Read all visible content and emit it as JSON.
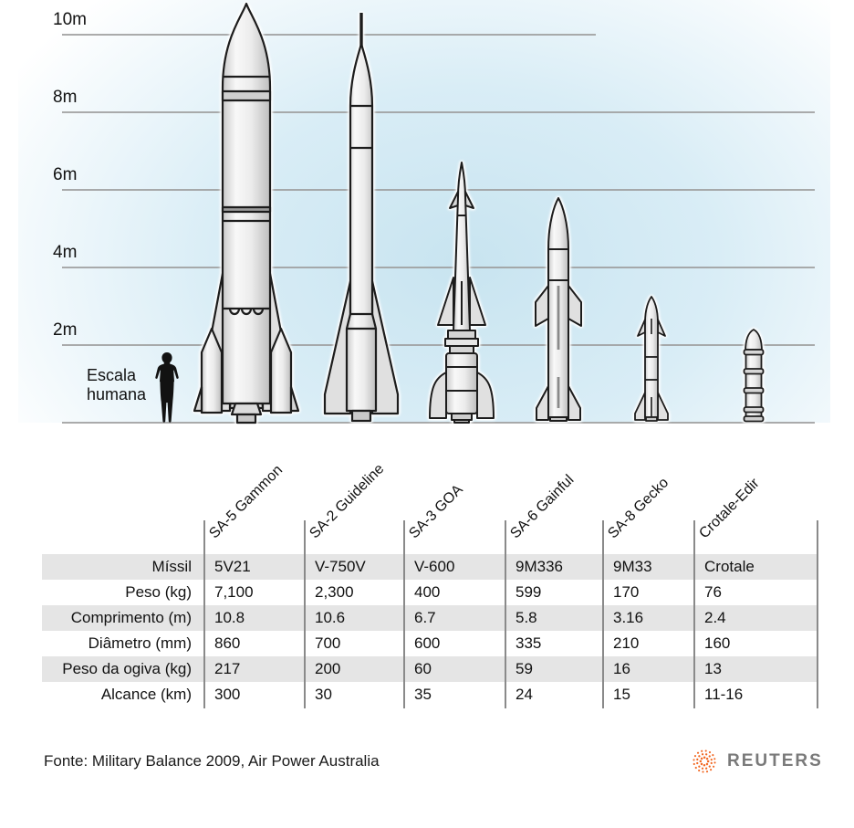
{
  "chart_data": {
    "type": "table",
    "scale": {
      "ticks": [
        "10m",
        "8m",
        "6m",
        "4m",
        "2m"
      ],
      "human_label": "Escala humana"
    },
    "columns": [
      "SA-5 Gammon",
      "SA-2 Guideline",
      "SA-3 GOA",
      "SA-6 Gainful",
      "SA-8 Gecko",
      "Crotale-Edir"
    ],
    "rows": [
      {
        "label": "Míssil",
        "values": [
          "5V21",
          "V-750V",
          "V-600",
          "9M336",
          "9M33",
          "Crotale"
        ]
      },
      {
        "label": "Peso (kg)",
        "values": [
          "7,100",
          "2,300",
          "400",
          "599",
          "170",
          "76"
        ]
      },
      {
        "label": "Comprimento (m)",
        "values": [
          "10.8",
          "10.6",
          "6.7",
          "5.8",
          "3.16",
          "2.4"
        ]
      },
      {
        "label": "Diâmetro (mm)",
        "values": [
          "860",
          "700",
          "600",
          "335",
          "210",
          "160"
        ]
      },
      {
        "label": "Peso da ogiva (kg)",
        "values": [
          "217",
          "200",
          "60",
          "59",
          "16",
          "13"
        ]
      },
      {
        "label": "Alcance (km)",
        "values": [
          "300",
          "30",
          "35",
          "24",
          "15",
          "11-16"
        ]
      }
    ],
    "missile_lengths_m": [
      10.8,
      10.6,
      6.7,
      5.8,
      3.16,
      2.4
    ],
    "colors": {
      "background_blue": "#cde7f2",
      "row_shade": "#e5e5e5",
      "grid_line": "#9c9c9c",
      "reuters_orange": "#f26822",
      "reuters_gray": "#7a7a7a"
    }
  },
  "footer": {
    "source": "Fonte: Military Balance 2009, Air Power Australia",
    "brand": "REUTERS"
  }
}
